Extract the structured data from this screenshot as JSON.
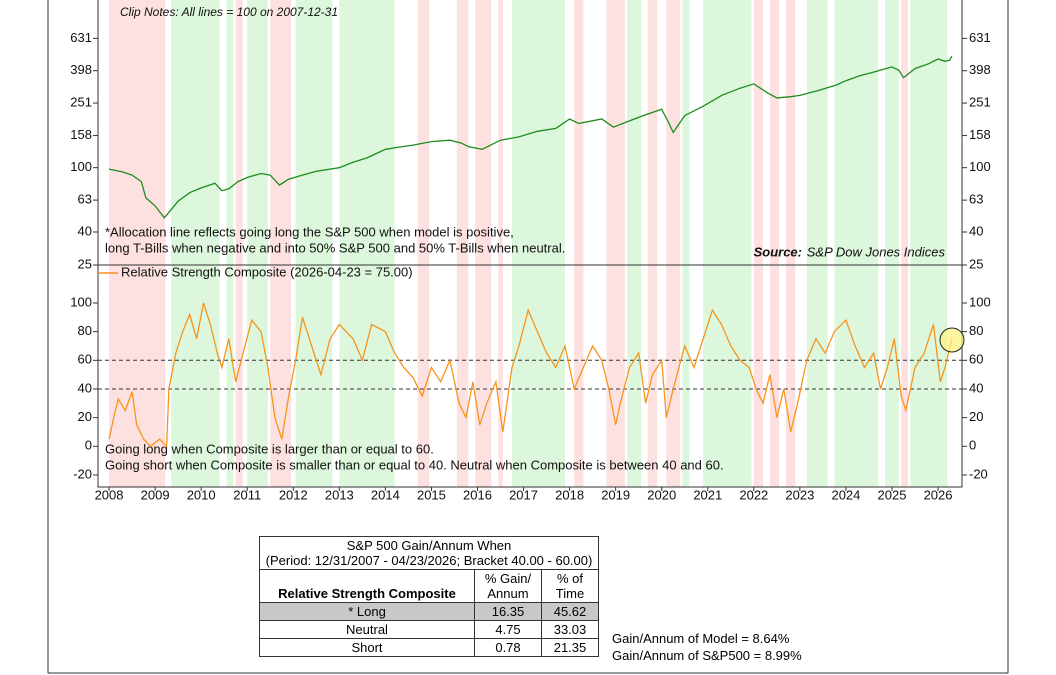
{
  "chart_data": [
    {
      "type": "line",
      "subtitle": "Clip Notes: All lines = 100 on 2007-12-31",
      "annotations": [
        "*Allocation line reflects going long the S&P 500 when model is positive,",
        "long T-Bills when negative and into 50% S&P 500 and 50% T-Bills when neutral."
      ],
      "source_label": "Source:",
      "source": "S&P Dow Jones Indices",
      "log_scale": true,
      "xlim": [
        2007.76,
        2026.52
      ],
      "ylim": [
        25,
        1121
      ],
      "yticks": [
        25,
        40,
        63,
        100,
        158,
        251,
        398,
        631
      ],
      "x": [
        2008.0,
        2008.3,
        2008.5,
        2008.7,
        2008.8,
        2009.0,
        2009.2,
        2009.35,
        2009.5,
        2009.75,
        2010.0,
        2010.3,
        2010.45,
        2010.6,
        2010.8,
        2011.0,
        2011.3,
        2011.5,
        2011.7,
        2011.9,
        2012.2,
        2012.5,
        2012.8,
        2013.0,
        2013.3,
        2013.6,
        2014.0,
        2014.3,
        2014.6,
        2015.0,
        2015.4,
        2015.65,
        2015.8,
        2016.1,
        2016.5,
        2016.9,
        2017.3,
        2017.7,
        2018.0,
        2018.2,
        2018.7,
        2018.95,
        2019.2,
        2019.6,
        2020.0,
        2020.15,
        2020.25,
        2020.5,
        2020.9,
        2021.3,
        2021.7,
        2022.0,
        2022.3,
        2022.5,
        2022.8,
        2023.0,
        2023.4,
        2023.8,
        2024.0,
        2024.3,
        2024.6,
        2025.0,
        2025.15,
        2025.25,
        2025.5,
        2025.8,
        2026.0,
        2026.15,
        2026.25,
        2026.3
      ],
      "series": [
        {
          "color": "#1e8c1e",
          "values": [
            98,
            94,
            90,
            82,
            65,
            58,
            49,
            55,
            62,
            70,
            75,
            80,
            72,
            74,
            82,
            87,
            92,
            90,
            78,
            85,
            90,
            95,
            98,
            100,
            108,
            115,
            130,
            134,
            138,
            145,
            148,
            142,
            135,
            130,
            148,
            155,
            168,
            175,
            200,
            188,
            200,
            178,
            190,
            210,
            230,
            190,
            165,
            210,
            240,
            280,
            310,
            330,
            290,
            270,
            275,
            280,
            300,
            325,
            345,
            370,
            390,
            420,
            400,
            360,
            410,
            440,
            470,
            455,
            462,
            490
          ]
        }
      ]
    },
    {
      "type": "line",
      "xlim": [
        2007.76,
        2026.52
      ],
      "ylim": [
        -28.4,
        126.5
      ],
      "yticks": [
        -20,
        0,
        20,
        40,
        60,
        80,
        100
      ],
      "xticks": [
        2008,
        2009,
        2010,
        2011,
        2012,
        2013,
        2014,
        2015,
        2016,
        2017,
        2018,
        2019,
        2020,
        2021,
        2022,
        2023,
        2024,
        2025,
        2026
      ],
      "reference_lines": [
        60,
        40
      ],
      "annotations": [
        "Going long when Composite is larger than or equal to 60.",
        "Going short when Composite is smaller than or equal to 40. Neutral when Composite is between 40 and 60."
      ],
      "x": [
        2008.0,
        2008.1,
        2008.2,
        2008.35,
        2008.5,
        2008.6,
        2008.75,
        2008.9,
        2009.1,
        2009.25,
        2009.3,
        2009.45,
        2009.6,
        2009.75,
        2009.9,
        2010.05,
        2010.2,
        2010.35,
        2010.45,
        2010.6,
        2010.75,
        2010.95,
        2011.1,
        2011.3,
        2011.45,
        2011.6,
        2011.75,
        2011.9,
        2012.05,
        2012.2,
        2012.4,
        2012.6,
        2012.8,
        2013.0,
        2013.3,
        2013.5,
        2013.7,
        2014.0,
        2014.2,
        2014.4,
        2014.6,
        2014.8,
        2015.0,
        2015.2,
        2015.4,
        2015.6,
        2015.75,
        2015.9,
        2016.05,
        2016.2,
        2016.4,
        2016.55,
        2016.75,
        2016.9,
        2017.1,
        2017.3,
        2017.5,
        2017.7,
        2017.9,
        2018.1,
        2018.3,
        2018.5,
        2018.7,
        2018.85,
        2019.0,
        2019.1,
        2019.3,
        2019.5,
        2019.65,
        2019.8,
        2020.0,
        2020.1,
        2020.25,
        2020.5,
        2020.7,
        2020.9,
        2021.1,
        2021.3,
        2021.5,
        2021.7,
        2021.9,
        2022.05,
        2022.2,
        2022.35,
        2022.5,
        2022.65,
        2022.8,
        2022.95,
        2023.15,
        2023.35,
        2023.55,
        2023.75,
        2024.0,
        2024.2,
        2024.4,
        2024.6,
        2024.75,
        2024.9,
        2025.05,
        2025.2,
        2025.3,
        2025.5,
        2025.7,
        2025.9,
        2026.05,
        2026.15,
        2026.3
      ],
      "series": [
        {
          "name": "Relative Strength Composite (2026-04-23 = 75.00)",
          "color": "#f7941d",
          "values": [
            5,
            20,
            33,
            25,
            38,
            15,
            5,
            0,
            5,
            0,
            40,
            65,
            80,
            92,
            75,
            100,
            85,
            65,
            55,
            75,
            45,
            70,
            88,
            80,
            55,
            20,
            5,
            35,
            60,
            90,
            70,
            50,
            75,
            85,
            75,
            60,
            85,
            80,
            65,
            55,
            48,
            35,
            55,
            45,
            60,
            30,
            20,
            45,
            15,
            30,
            45,
            10,
            55,
            70,
            95,
            80,
            65,
            55,
            70,
            40,
            55,
            70,
            60,
            40,
            15,
            30,
            55,
            65,
            30,
            50,
            60,
            20,
            40,
            70,
            55,
            75,
            95,
            85,
            70,
            60,
            55,
            40,
            30,
            50,
            20,
            40,
            10,
            30,
            60,
            75,
            65,
            80,
            88,
            70,
            55,
            65,
            40,
            55,
            75,
            35,
            25,
            55,
            65,
            85,
            45,
            55,
            75
          ]
        }
      ]
    }
  ],
  "signal_periods": {
    "long": {
      "color": "#dcf7dc",
      "ranges": [
        [
          2009.35,
          2010.4
        ],
        [
          2010.55,
          2010.7
        ],
        [
          2011.0,
          2011.45
        ],
        [
          2012.05,
          2012.85
        ],
        [
          2013.0,
          2014.2
        ],
        [
          2016.75,
          2017.9
        ],
        [
          2019.25,
          2019.55
        ],
        [
          2020.45,
          2020.6
        ],
        [
          2020.9,
          2021.95
        ],
        [
          2023.15,
          2023.6
        ],
        [
          2023.75,
          2024.7
        ],
        [
          2024.85,
          2025.15
        ],
        [
          2025.4,
          2026.2
        ]
      ]
    },
    "short": {
      "color": "#fde0e0",
      "ranges": [
        [
          2008.0,
          2009.22
        ],
        [
          2010.75,
          2010.9
        ],
        [
          2011.5,
          2011.95
        ],
        [
          2014.7,
          2014.95
        ],
        [
          2015.55,
          2015.8
        ],
        [
          2015.95,
          2016.3
        ],
        [
          2016.45,
          2016.55
        ],
        [
          2018.1,
          2018.3
        ],
        [
          2018.8,
          2019.2
        ],
        [
          2019.7,
          2019.9
        ],
        [
          2020.1,
          2020.4
        ],
        [
          2022.0,
          2022.2
        ],
        [
          2022.35,
          2022.55
        ],
        [
          2022.7,
          2022.9
        ],
        [
          2025.2,
          2025.35
        ]
      ]
    }
  },
  "table": {
    "title": [
      "S&P 500 Gain/Annum When",
      "(Period: 12/31/2007 - 04/23/2026; Bracket 40.00 - 60.00)"
    ],
    "header": [
      "Relative Strength Composite",
      "% Gain/ Annum",
      "% of Time"
    ],
    "rows": [
      [
        "* Long",
        "16.35",
        "45.62"
      ],
      [
        "Neutral",
        "4.75",
        "33.03"
      ],
      [
        "Short",
        "0.78",
        "21.35"
      ]
    ]
  },
  "model_notes": [
    "Gain/Annum of Model = 8.64%",
    "Gain/Annum of S&P500 = 8.99%"
  ]
}
